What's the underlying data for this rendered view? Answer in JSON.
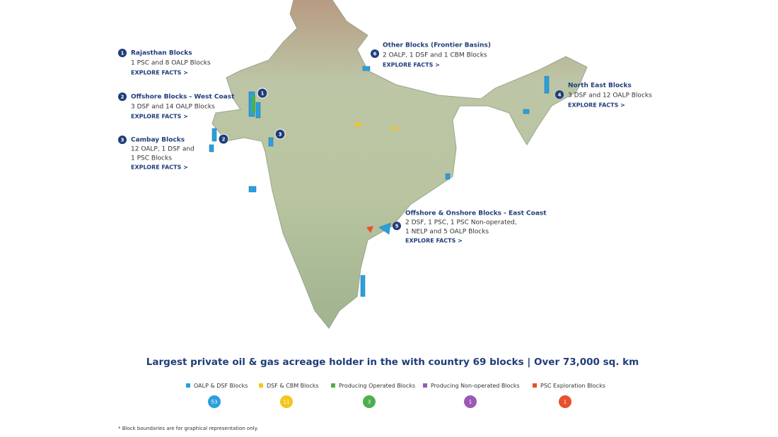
{
  "regions": [
    {
      "number": "1",
      "title": "Rajasthan Blocks",
      "description_lines": [
        "1 PSC and 8 OALP Blocks"
      ],
      "link": "EXPLORE FACTS >"
    },
    {
      "number": "2",
      "title": "Offshore Blocks - West Coast",
      "description_lines": [
        "3 DSF and 14 OALP Blocks"
      ],
      "link": "EXPLORE FACTS >"
    },
    {
      "number": "3",
      "title": "Cambay Blocks",
      "description_lines": [
        "12 OALP, 1 DSF and",
        "1 PSC Blocks"
      ],
      "link": "EXPLORE FACTS >"
    },
    {
      "number": "4",
      "title": "North East Blocks",
      "description_lines": [
        "3 DSF and 12 OALP Blocks"
      ],
      "link": "EXPLORE FACTS >"
    },
    {
      "number": "5",
      "title": "Offshore & Onshore Blocks - East Coast",
      "description_lines": [
        "2 DSF, 1 PSC, 1 PSC Non-operated,",
        "1 NELP and 5 OALP Blocks"
      ],
      "link": "EXPLORE FACTS >"
    },
    {
      "number": "6",
      "title": "Other Blocks (Frontier Basins)",
      "description_lines": [
        "2 OALP, 1 DSF and 1 CBM Blocks"
      ],
      "link": "EXPLORE FACTS >"
    }
  ],
  "headline": "Largest private oil & gas acreage holder in the with country 69 blocks | Over 73,000 sq. km",
  "legend": [
    {
      "label": "OALP & DSF Blocks",
      "count": 53,
      "color": "#2b9fde"
    },
    {
      "label": "DSF & CBM Blocks",
      "count": 11,
      "color": "#f5c518"
    },
    {
      "label": "Producing Operated Blocks",
      "count": 3,
      "color": "#4caf50"
    },
    {
      "label": "Producing Non-operated Blocks",
      "count": 1,
      "color": "#9b59b6"
    },
    {
      "label": "PSC Exploration Blocks",
      "count": 1,
      "color": "#e8502b"
    }
  ],
  "footnote": "* Block boundaries are for graphical representation only."
}
